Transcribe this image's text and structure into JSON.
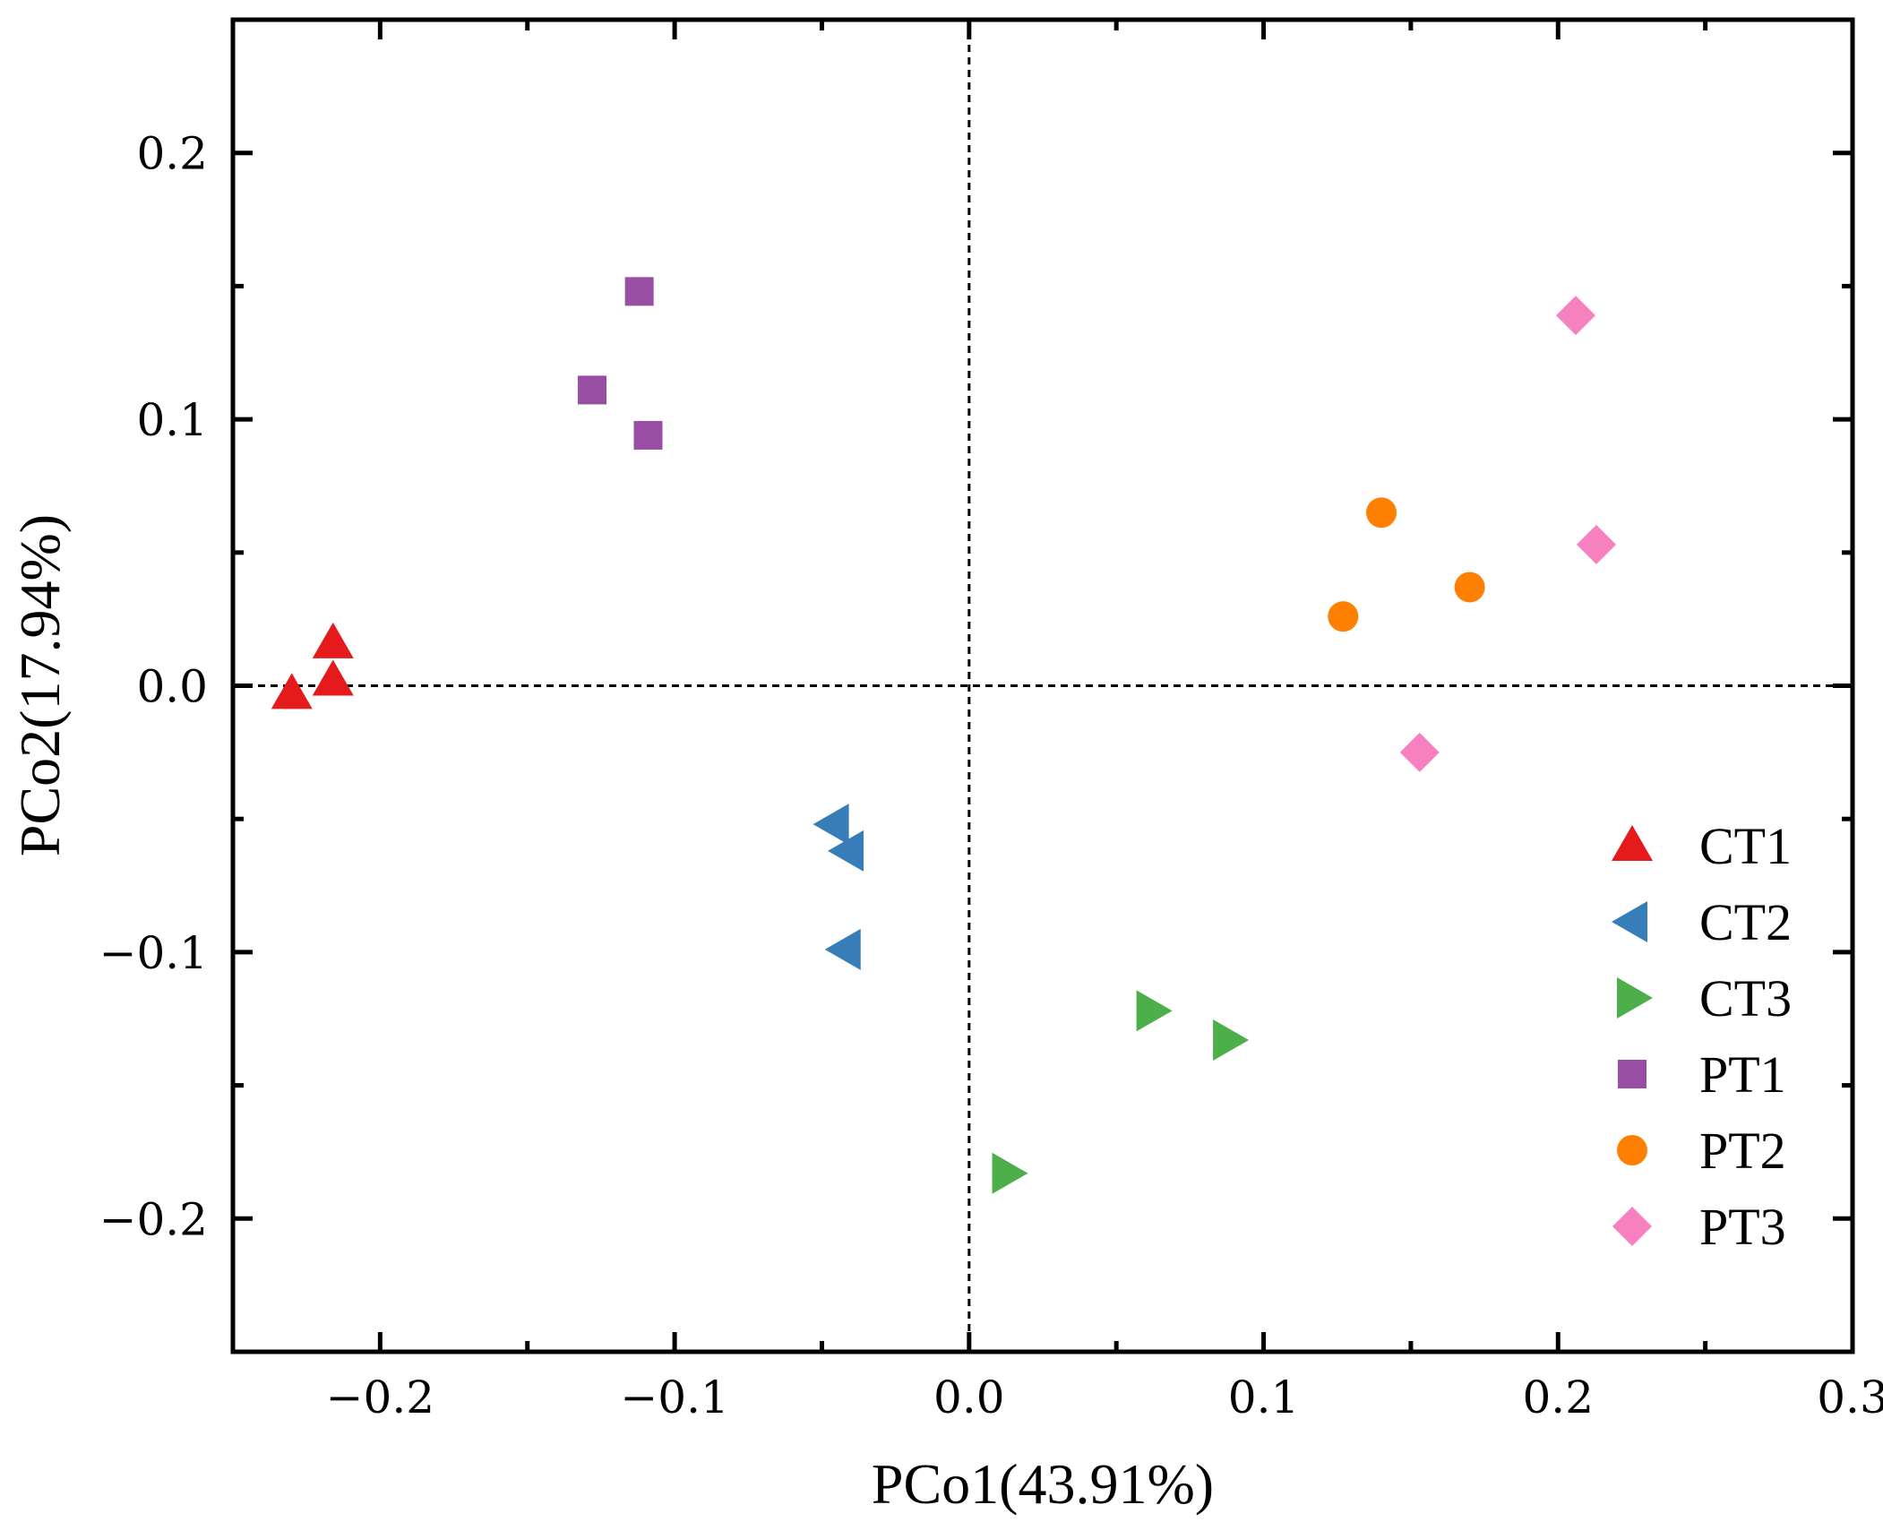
{
  "chart_data": {
    "type": "scatter",
    "title": "",
    "xlabel": "PCo1(43.91%)",
    "ylabel": "PCo2(17.94%)",
    "xlim": [
      -0.25,
      0.3
    ],
    "ylim": [
      -0.25,
      0.25
    ],
    "x_ticks": [
      -0.2,
      -0.1,
      0.0,
      0.1,
      0.2,
      0.3
    ],
    "x_tick_labels": [
      "−0.2",
      "−0.1",
      "0.0",
      "0.1",
      "0.2",
      "0.3"
    ],
    "y_ticks": [
      -0.2,
      -0.1,
      0.0,
      0.1,
      0.2
    ],
    "y_tick_labels": [
      "−0.2",
      "−0.1",
      "0.0",
      "0.1",
      "0.2"
    ],
    "reference_lines": {
      "x": 0,
      "y": 0,
      "style": "dashed"
    },
    "grid": false,
    "legend_position": "bottom-right",
    "series": [
      {
        "name": "CT1",
        "marker": "triangle-up",
        "color": "#e41a1c",
        "points": [
          [
            -0.23,
            -0.003
          ],
          [
            -0.216,
            0.016
          ],
          [
            -0.216,
            0.002
          ]
        ]
      },
      {
        "name": "CT2",
        "marker": "triangle-left",
        "color": "#377eb8",
        "points": [
          [
            -0.046,
            -0.052
          ],
          [
            -0.041,
            -0.062
          ],
          [
            -0.042,
            -0.099
          ]
        ]
      },
      {
        "name": "CT3",
        "marker": "triangle-right",
        "color": "#4daf4a",
        "points": [
          [
            0.062,
            -0.122
          ],
          [
            0.088,
            -0.133
          ],
          [
            0.013,
            -0.183
          ]
        ]
      },
      {
        "name": "PT1",
        "marker": "square",
        "color": "#984ea3",
        "points": [
          [
            -0.112,
            0.148
          ],
          [
            -0.128,
            0.111
          ],
          [
            -0.109,
            0.094
          ]
        ]
      },
      {
        "name": "PT2",
        "marker": "circle",
        "color": "#ff7f00",
        "points": [
          [
            0.14,
            0.065
          ],
          [
            0.17,
            0.037
          ],
          [
            0.127,
            0.026
          ]
        ]
      },
      {
        "name": "PT3",
        "marker": "diamond",
        "color": "#f781bf",
        "points": [
          [
            0.206,
            0.139
          ],
          [
            0.213,
            0.053
          ],
          [
            0.153,
            -0.025
          ]
        ]
      }
    ]
  }
}
